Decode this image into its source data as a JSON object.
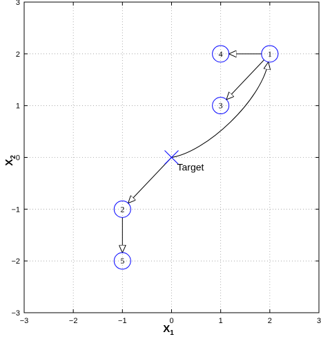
{
  "chart_data": {
    "type": "scatter",
    "xlim": [
      -3,
      3
    ],
    "ylim": [
      -3,
      3
    ],
    "xticks": [
      "−3",
      "−2",
      "−1",
      "0",
      "1",
      "2",
      "3"
    ],
    "yticks": [
      "−3",
      "−2",
      "−1",
      "0",
      "1",
      "2",
      "3"
    ],
    "xlabel": "X",
    "xlabel_sub": "1",
    "ylabel": "X",
    "ylabel_sub": "2",
    "grid": true,
    "node_color": "#0000ff",
    "target": {
      "label": "Target",
      "x": 0,
      "y": 0
    },
    "nodes": [
      {
        "label": "1",
        "x": 2,
        "y": 2
      },
      {
        "label": "2",
        "x": -1,
        "y": -1
      },
      {
        "label": "3",
        "x": 1,
        "y": 1
      },
      {
        "label": "4",
        "x": 1,
        "y": 2
      },
      {
        "label": "5",
        "x": -1,
        "y": -2
      }
    ],
    "edges": [
      {
        "from": "Target",
        "to": "1",
        "curved": true
      },
      {
        "from": "Target",
        "to": "2"
      },
      {
        "from": "1",
        "to": "4"
      },
      {
        "from": "1",
        "to": "3"
      },
      {
        "from": "2",
        "to": "5"
      }
    ]
  }
}
